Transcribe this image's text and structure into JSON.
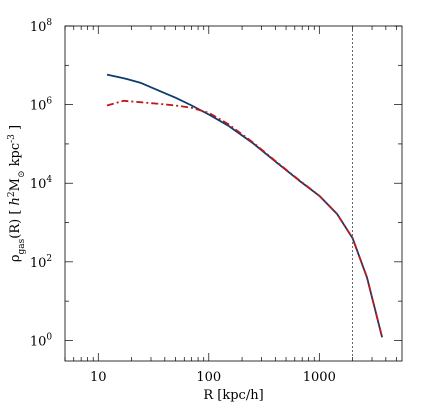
{
  "chart_data": {
    "type": "line",
    "title": "",
    "xlabel": "R [kpc/h]",
    "ylabel": {
      "prefix": "ρ",
      "sub": "gas",
      "arg": "(R)  [ ",
      "h": "h",
      "h_exp": "2",
      "mid": "M",
      "sun": "⊙",
      "unit": " kpc",
      "unit_exp": "-3",
      "close": " ]"
    },
    "x_scale": "log",
    "y_scale": "log",
    "xlim": [
      5,
      5600
    ],
    "ylim": [
      0.3,
      100000000
    ],
    "x_tick_labels": [
      {
        "value": 10,
        "label": "10"
      },
      {
        "value": 100,
        "label": "100"
      },
      {
        "value": 1000,
        "label": "1000"
      }
    ],
    "y_tick_labels": [
      {
        "value": 1,
        "base": "10",
        "exp": "0"
      },
      {
        "value": 100,
        "base": "10",
        "exp": "2"
      },
      {
        "value": 10000,
        "base": "10",
        "exp": "4"
      },
      {
        "value": 1000000,
        "base": "10",
        "exp": "6"
      },
      {
        "value": 100000000,
        "base": "10",
        "exp": "8"
      }
    ],
    "series": [
      {
        "color": "#0b3d6e",
        "style": "solid",
        "x": [
          12,
          17,
          24,
          35,
          50,
          70,
          100,
          150,
          250,
          400,
          650,
          1000,
          1450,
          2000,
          2700,
          3700
        ],
        "y": [
          5800000,
          4700000,
          3600000,
          2300000,
          1500000,
          950000,
          560000,
          290000,
          105000,
          36000,
          12000,
          4800,
          1650,
          400,
          40,
          1.2
        ]
      },
      {
        "color": "#c01818",
        "style": "dashdot",
        "x": [
          12,
          17,
          24,
          35,
          50,
          70,
          100,
          150,
          250,
          400,
          650,
          1000,
          1450,
          2000,
          2700,
          3700
        ],
        "y": [
          950000,
          1250000,
          1150000,
          1050000,
          950000,
          830000,
          620000,
          320000,
          110000,
          37000,
          12300,
          4800,
          1650,
          400,
          40,
          1.2
        ]
      }
    ],
    "vertical_line": {
      "x": 2000,
      "style": "dotted",
      "color": "#444444"
    },
    "grid": false,
    "legend": "none"
  }
}
